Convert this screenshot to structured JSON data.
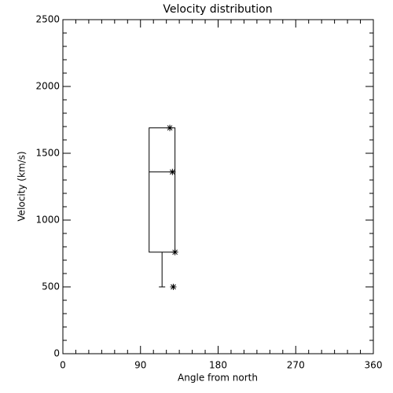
{
  "chart_data": {
    "type": "box",
    "title": "Velocity distribution",
    "x_label": "Angle from north",
    "y_label": "Velocity (km/s)",
    "xlim": [
      0,
      360
    ],
    "xticks": [
      0,
      90,
      180,
      270,
      360
    ],
    "ylim": [
      0,
      2500
    ],
    "yticks": [
      0,
      500,
      1000,
      1500,
      2000,
      2500
    ],
    "box": {
      "x": [
        100,
        130
      ],
      "whisker_x": 115,
      "low": 500,
      "q1": 760,
      "median": 1360,
      "q3": 1690
    },
    "points": {
      "x": [
        124,
        127,
        130,
        128
      ],
      "y": [
        1690,
        1360,
        760,
        500
      ]
    }
  }
}
